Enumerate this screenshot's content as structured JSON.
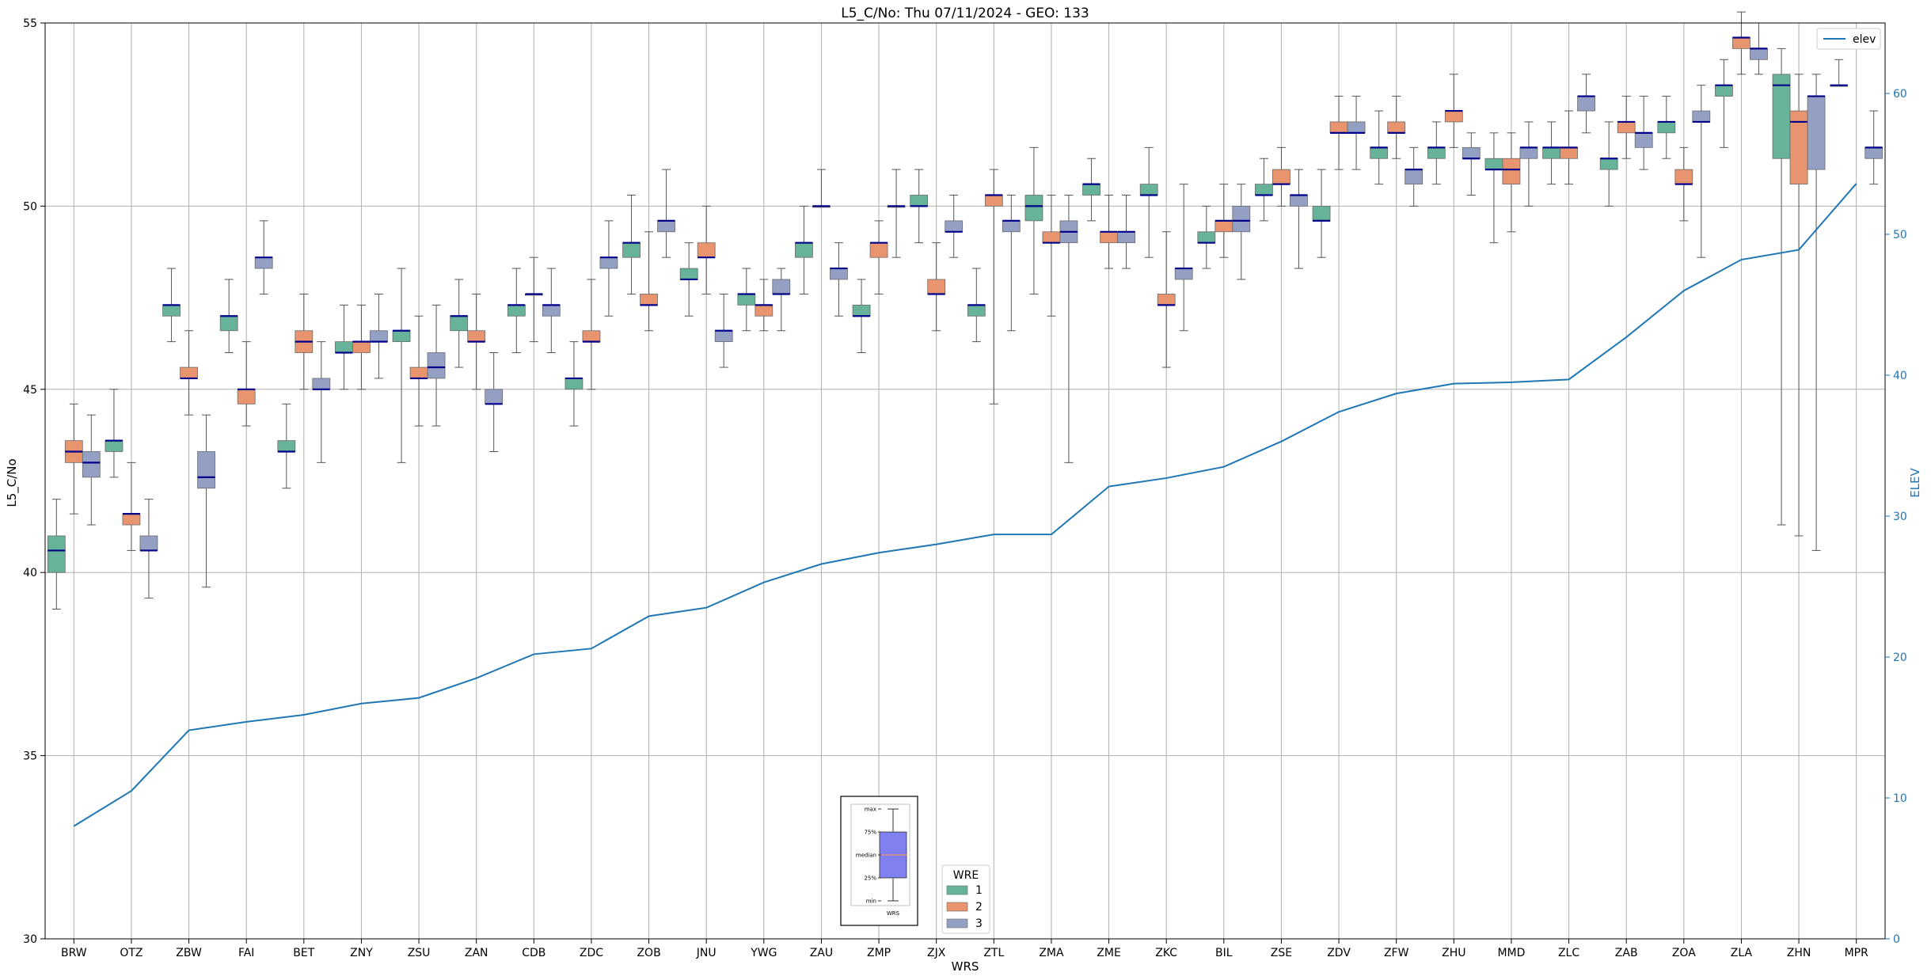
{
  "chart_data": {
    "type": "box",
    "title": "L5_C/No: Thu 07/11/2024 - GEO: 133",
    "xlabel": "WRS",
    "ylabel": "L5_C/No",
    "y2label": "ELEV",
    "ylim": [
      30,
      55
    ],
    "y2lim": [
      0,
      65
    ],
    "yticks": [
      "30",
      "35",
      "40",
      "45",
      "50",
      "55"
    ],
    "y2ticks": [
      "0",
      "10",
      "20",
      "30",
      "40",
      "50",
      "60"
    ],
    "grid": true,
    "categories": [
      "BRW",
      "OTZ",
      "ZBW",
      "FAI",
      "BET",
      "ZNY",
      "ZSU",
      "ZAN",
      "CDB",
      "ZDC",
      "ZOB",
      "JNU",
      "YWG",
      "ZAU",
      "ZMP",
      "ZJX",
      "ZTL",
      "ZMA",
      "ZME",
      "ZKC",
      "BIL",
      "ZSE",
      "ZDV",
      "ZFW",
      "ZHU",
      "MMD",
      "ZLC",
      "ZAB",
      "ZOA",
      "ZLA",
      "ZHN",
      "MPR"
    ],
    "wre_legend": {
      "title": "WRE",
      "entries": [
        {
          "label": "1",
          "color": "#66b39a"
        },
        {
          "label": "2",
          "color": "#e8946f"
        },
        {
          "label": "3",
          "color": "#949fc4"
        }
      ]
    },
    "line_legend": {
      "label": "elev",
      "color": "#1f77b4"
    },
    "median_color": "#00008b",
    "inset_key": {
      "labels": [
        "max",
        "75%",
        "median",
        "25%",
        "min"
      ],
      "footer": "WRS"
    },
    "elev": [
      8,
      10.5,
      14.8,
      15.4,
      15.9,
      16.7,
      17.1,
      18.5,
      20.2,
      20.6,
      22.9,
      23.5,
      25.3,
      26.6,
      27.4,
      28.0,
      28.7,
      28.7,
      32.1,
      32.7,
      33.5,
      35.3,
      37.4,
      38.7,
      39.4,
      39.5,
      39.7,
      42.7,
      46.0,
      48.2,
      48.9,
      53.6
    ],
    "boxes": [
      {
        "wrs": "BRW",
        "wre": 1,
        "min": 39.0,
        "q1": 40.0,
        "median": 40.6,
        "q3": 41.0,
        "max": 42.0
      },
      {
        "wrs": "BRW",
        "wre": 2,
        "min": 41.6,
        "q1": 43.0,
        "median": 43.3,
        "q3": 43.6,
        "max": 44.6
      },
      {
        "wrs": "BRW",
        "wre": 3,
        "min": 41.3,
        "q1": 42.6,
        "median": 43.0,
        "q3": 43.3,
        "max": 44.3
      },
      {
        "wrs": "OTZ",
        "wre": 1,
        "min": 42.6,
        "q1": 43.3,
        "median": 43.6,
        "q3": 43.6,
        "max": 45.0
      },
      {
        "wrs": "OTZ",
        "wre": 2,
        "min": 40.6,
        "q1": 41.3,
        "median": 41.6,
        "q3": 41.6,
        "max": 43.0
      },
      {
        "wrs": "OTZ",
        "wre": 3,
        "min": 39.3,
        "q1": 40.6,
        "median": 40.6,
        "q3": 41.0,
        "max": 42.0
      },
      {
        "wrs": "ZBW",
        "wre": 1,
        "min": 46.3,
        "q1": 47.0,
        "median": 47.3,
        "q3": 47.3,
        "max": 48.3
      },
      {
        "wrs": "ZBW",
        "wre": 2,
        "min": 44.3,
        "q1": 45.3,
        "median": 45.3,
        "q3": 45.6,
        "max": 46.6
      },
      {
        "wrs": "ZBW",
        "wre": 3,
        "min": 39.6,
        "q1": 42.3,
        "median": 42.6,
        "q3": 43.3,
        "max": 44.3
      },
      {
        "wrs": "FAI",
        "wre": 1,
        "min": 46.0,
        "q1": 46.6,
        "median": 47.0,
        "q3": 47.0,
        "max": 48.0
      },
      {
        "wrs": "FAI",
        "wre": 2,
        "min": 44.0,
        "q1": 44.6,
        "median": 45.0,
        "q3": 45.0,
        "max": 46.3
      },
      {
        "wrs": "FAI",
        "wre": 3,
        "min": 47.6,
        "q1": 48.3,
        "median": 48.6,
        "q3": 48.6,
        "max": 49.6
      },
      {
        "wrs": "BET",
        "wre": 1,
        "min": 42.3,
        "q1": 43.3,
        "median": 43.3,
        "q3": 43.6,
        "max": 44.6
      },
      {
        "wrs": "BET",
        "wre": 2,
        "min": 45.0,
        "q1": 46.0,
        "median": 46.3,
        "q3": 46.6,
        "max": 47.6
      },
      {
        "wrs": "BET",
        "wre": 3,
        "min": 43.0,
        "q1": 45.0,
        "median": 45.0,
        "q3": 45.3,
        "max": 46.3
      },
      {
        "wrs": "ZNY",
        "wre": 1,
        "min": 45.0,
        "q1": 46.0,
        "median": 46.0,
        "q3": 46.3,
        "max": 47.3
      },
      {
        "wrs": "ZNY",
        "wre": 2,
        "min": 45.0,
        "q1": 46.0,
        "median": 46.3,
        "q3": 46.3,
        "max": 47.3
      },
      {
        "wrs": "ZNY",
        "wre": 3,
        "min": 45.3,
        "q1": 46.3,
        "median": 46.3,
        "q3": 46.6,
        "max": 47.6
      },
      {
        "wrs": "ZSU",
        "wre": 1,
        "min": 43.0,
        "q1": 46.3,
        "median": 46.6,
        "q3": 46.6,
        "max": 48.3
      },
      {
        "wrs": "ZSU",
        "wre": 2,
        "min": 44.0,
        "q1": 45.3,
        "median": 45.3,
        "q3": 45.6,
        "max": 47.0
      },
      {
        "wrs": "ZSU",
        "wre": 3,
        "min": 44.0,
        "q1": 45.3,
        "median": 45.6,
        "q3": 46.0,
        "max": 47.3
      },
      {
        "wrs": "ZAN",
        "wre": 1,
        "min": 45.6,
        "q1": 46.6,
        "median": 47.0,
        "q3": 47.0,
        "max": 48.0
      },
      {
        "wrs": "ZAN",
        "wre": 2,
        "min": 45.0,
        "q1": 46.3,
        "median": 46.3,
        "q3": 46.6,
        "max": 47.6
      },
      {
        "wrs": "ZAN",
        "wre": 3,
        "min": 43.3,
        "q1": 44.6,
        "median": 44.6,
        "q3": 45.0,
        "max": 46.0
      },
      {
        "wrs": "CDB",
        "wre": 1,
        "min": 46.0,
        "q1": 47.0,
        "median": 47.3,
        "q3": 47.3,
        "max": 48.3
      },
      {
        "wrs": "CDB",
        "wre": 2,
        "min": 46.3,
        "q1": 47.6,
        "median": 47.6,
        "q3": 47.6,
        "max": 48.6
      },
      {
        "wrs": "CDB",
        "wre": 3,
        "min": 46.0,
        "q1": 47.0,
        "median": 47.3,
        "q3": 47.3,
        "max": 48.3
      },
      {
        "wrs": "ZDC",
        "wre": 1,
        "min": 44.0,
        "q1": 45.0,
        "median": 45.3,
        "q3": 45.3,
        "max": 46.3
      },
      {
        "wrs": "ZDC",
        "wre": 2,
        "min": 45.0,
        "q1": 46.3,
        "median": 46.3,
        "q3": 46.6,
        "max": 48.0
      },
      {
        "wrs": "ZDC",
        "wre": 3,
        "min": 47.0,
        "q1": 48.3,
        "median": 48.6,
        "q3": 48.6,
        "max": 49.6
      },
      {
        "wrs": "ZOB",
        "wre": 1,
        "min": 47.6,
        "q1": 48.6,
        "median": 49.0,
        "q3": 49.0,
        "max": 50.3
      },
      {
        "wrs": "ZOB",
        "wre": 2,
        "min": 46.6,
        "q1": 47.3,
        "median": 47.3,
        "q3": 47.6,
        "max": 49.3
      },
      {
        "wrs": "ZOB",
        "wre": 3,
        "min": 48.6,
        "q1": 49.3,
        "median": 49.6,
        "q3": 49.6,
        "max": 51.0
      },
      {
        "wrs": "JNU",
        "wre": 1,
        "min": 47.0,
        "q1": 48.0,
        "median": 48.0,
        "q3": 48.3,
        "max": 49.0
      },
      {
        "wrs": "JNU",
        "wre": 2,
        "min": 47.6,
        "q1": 48.6,
        "median": 48.6,
        "q3": 49.0,
        "max": 50.0
      },
      {
        "wrs": "JNU",
        "wre": 3,
        "min": 45.6,
        "q1": 46.3,
        "median": 46.6,
        "q3": 46.6,
        "max": 47.6
      },
      {
        "wrs": "YWG",
        "wre": 1,
        "min": 46.6,
        "q1": 47.3,
        "median": 47.6,
        "q3": 47.6,
        "max": 48.3
      },
      {
        "wrs": "YWG",
        "wre": 2,
        "min": 46.6,
        "q1": 47.0,
        "median": 47.3,
        "q3": 47.3,
        "max": 48.0
      },
      {
        "wrs": "YWG",
        "wre": 3,
        "min": 46.6,
        "q1": 47.6,
        "median": 47.6,
        "q3": 48.0,
        "max": 48.3
      },
      {
        "wrs": "ZAU",
        "wre": 1,
        "min": 47.6,
        "q1": 48.6,
        "median": 49.0,
        "q3": 49.0,
        "max": 50.0
      },
      {
        "wrs": "ZAU",
        "wre": 2,
        "min": 50.0,
        "q1": 50.0,
        "median": 50.0,
        "q3": 50.0,
        "max": 51.0
      },
      {
        "wrs": "ZAU",
        "wre": 3,
        "min": 47.0,
        "q1": 48.0,
        "median": 48.3,
        "q3": 48.3,
        "max": 49.0
      },
      {
        "wrs": "ZMP",
        "wre": 1,
        "min": 46.0,
        "q1": 47.0,
        "median": 47.0,
        "q3": 47.3,
        "max": 48.0
      },
      {
        "wrs": "ZMP",
        "wre": 2,
        "min": 47.6,
        "q1": 48.6,
        "median": 49.0,
        "q3": 49.0,
        "max": 49.6
      },
      {
        "wrs": "ZMP",
        "wre": 3,
        "min": 48.6,
        "q1": 50.0,
        "median": 50.0,
        "q3": 50.0,
        "max": 51.0
      },
      {
        "wrs": "ZJX",
        "wre": 1,
        "min": 49.0,
        "q1": 50.0,
        "median": 50.0,
        "q3": 50.3,
        "max": 51.0
      },
      {
        "wrs": "ZJX",
        "wre": 2,
        "min": 46.6,
        "q1": 47.6,
        "median": 47.6,
        "q3": 48.0,
        "max": 49.0
      },
      {
        "wrs": "ZJX",
        "wre": 3,
        "min": 48.6,
        "q1": 49.3,
        "median": 49.3,
        "q3": 49.6,
        "max": 50.3
      },
      {
        "wrs": "ZTL",
        "wre": 1,
        "min": 46.3,
        "q1": 47.0,
        "median": 47.3,
        "q3": 47.3,
        "max": 48.3
      },
      {
        "wrs": "ZTL",
        "wre": 2,
        "min": 44.6,
        "q1": 50.0,
        "median": 50.3,
        "q3": 50.3,
        "max": 51.0
      },
      {
        "wrs": "ZTL",
        "wre": 3,
        "min": 46.6,
        "q1": 49.3,
        "median": 49.6,
        "q3": 49.6,
        "max": 50.3
      },
      {
        "wrs": "ZMA",
        "wre": 1,
        "min": 47.6,
        "q1": 49.6,
        "median": 50.0,
        "q3": 50.3,
        "max": 51.6
      },
      {
        "wrs": "ZMA",
        "wre": 2,
        "min": 47.0,
        "q1": 49.0,
        "median": 49.0,
        "q3": 49.3,
        "max": 50.3
      },
      {
        "wrs": "ZMA",
        "wre": 3,
        "min": 43.0,
        "q1": 49.0,
        "median": 49.3,
        "q3": 49.6,
        "max": 50.3
      },
      {
        "wrs": "ZME",
        "wre": 1,
        "min": 49.6,
        "q1": 50.3,
        "median": 50.6,
        "q3": 50.6,
        "max": 51.3
      },
      {
        "wrs": "ZME",
        "wre": 2,
        "min": 48.3,
        "q1": 49.0,
        "median": 49.3,
        "q3": 49.3,
        "max": 50.3
      },
      {
        "wrs": "ZME",
        "wre": 3,
        "min": 48.3,
        "q1": 49.0,
        "median": 49.3,
        "q3": 49.3,
        "max": 50.3
      },
      {
        "wrs": "ZKC",
        "wre": 1,
        "min": 48.6,
        "q1": 50.3,
        "median": 50.3,
        "q3": 50.6,
        "max": 51.6
      },
      {
        "wrs": "ZKC",
        "wre": 2,
        "min": 45.6,
        "q1": 47.3,
        "median": 47.3,
        "q3": 47.6,
        "max": 49.3
      },
      {
        "wrs": "ZKC",
        "wre": 3,
        "min": 46.6,
        "q1": 48.0,
        "median": 48.3,
        "q3": 48.3,
        "max": 50.6
      },
      {
        "wrs": "BIL",
        "wre": 1,
        "min": 48.3,
        "q1": 49.0,
        "median": 49.0,
        "q3": 49.3,
        "max": 50.0
      },
      {
        "wrs": "BIL",
        "wre": 2,
        "min": 48.6,
        "q1": 49.3,
        "median": 49.6,
        "q3": 49.6,
        "max": 50.6
      },
      {
        "wrs": "BIL",
        "wre": 3,
        "min": 48.0,
        "q1": 49.3,
        "median": 49.6,
        "q3": 50.0,
        "max": 50.6
      },
      {
        "wrs": "ZSE",
        "wre": 1,
        "min": 49.6,
        "q1": 50.3,
        "median": 50.3,
        "q3": 50.6,
        "max": 51.3
      },
      {
        "wrs": "ZSE",
        "wre": 2,
        "min": 50.0,
        "q1": 50.6,
        "median": 50.6,
        "q3": 51.0,
        "max": 51.6
      },
      {
        "wrs": "ZSE",
        "wre": 3,
        "min": 48.3,
        "q1": 50.0,
        "median": 50.3,
        "q3": 50.3,
        "max": 51.0
      },
      {
        "wrs": "ZDV",
        "wre": 1,
        "min": 48.6,
        "q1": 49.6,
        "median": 49.6,
        "q3": 50.0,
        "max": 51.0
      },
      {
        "wrs": "ZDV",
        "wre": 2,
        "min": 51.0,
        "q1": 52.0,
        "median": 52.0,
        "q3": 52.3,
        "max": 53.0
      },
      {
        "wrs": "ZDV",
        "wre": 3,
        "min": 51.0,
        "q1": 52.0,
        "median": 52.0,
        "q3": 52.3,
        "max": 53.0
      },
      {
        "wrs": "ZFW",
        "wre": 1,
        "min": 50.6,
        "q1": 51.3,
        "median": 51.6,
        "q3": 51.6,
        "max": 52.6
      },
      {
        "wrs": "ZFW",
        "wre": 2,
        "min": 51.3,
        "q1": 52.0,
        "median": 52.0,
        "q3": 52.3,
        "max": 53.0
      },
      {
        "wrs": "ZFW",
        "wre": 3,
        "min": 50.0,
        "q1": 50.6,
        "median": 51.0,
        "q3": 51.0,
        "max": 51.6
      },
      {
        "wrs": "ZHU",
        "wre": 1,
        "min": 50.6,
        "q1": 51.3,
        "median": 51.6,
        "q3": 51.6,
        "max": 52.3
      },
      {
        "wrs": "ZHU",
        "wre": 2,
        "min": 51.6,
        "q1": 52.3,
        "median": 52.6,
        "q3": 52.6,
        "max": 53.6
      },
      {
        "wrs": "ZHU",
        "wre": 3,
        "min": 50.3,
        "q1": 51.3,
        "median": 51.3,
        "q3": 51.6,
        "max": 52.0
      },
      {
        "wrs": "MMD",
        "wre": 1,
        "min": 49.0,
        "q1": 51.0,
        "median": 51.0,
        "q3": 51.3,
        "max": 52.0
      },
      {
        "wrs": "MMD",
        "wre": 2,
        "min": 49.3,
        "q1": 50.6,
        "median": 51.0,
        "q3": 51.3,
        "max": 52.0
      },
      {
        "wrs": "MMD",
        "wre": 3,
        "min": 50.0,
        "q1": 51.3,
        "median": 51.6,
        "q3": 51.6,
        "max": 52.3
      },
      {
        "wrs": "ZLC",
        "wre": 1,
        "min": 50.6,
        "q1": 51.3,
        "median": 51.6,
        "q3": 51.6,
        "max": 52.3
      },
      {
        "wrs": "ZLC",
        "wre": 2,
        "min": 50.6,
        "q1": 51.3,
        "median": 51.6,
        "q3": 51.6,
        "max": 52.6
      },
      {
        "wrs": "ZLC",
        "wre": 3,
        "min": 52.0,
        "q1": 52.6,
        "median": 53.0,
        "q3": 53.0,
        "max": 53.6
      },
      {
        "wrs": "ZAB",
        "wre": 1,
        "min": 50.0,
        "q1": 51.0,
        "median": 51.3,
        "q3": 51.3,
        "max": 52.3
      },
      {
        "wrs": "ZAB",
        "wre": 2,
        "min": 51.3,
        "q1": 52.0,
        "median": 52.3,
        "q3": 52.3,
        "max": 53.0
      },
      {
        "wrs": "ZAB",
        "wre": 3,
        "min": 51.0,
        "q1": 51.6,
        "median": 52.0,
        "q3": 52.0,
        "max": 53.0
      },
      {
        "wrs": "ZOA",
        "wre": 1,
        "min": 51.3,
        "q1": 52.0,
        "median": 52.3,
        "q3": 52.3,
        "max": 53.0
      },
      {
        "wrs": "ZOA",
        "wre": 2,
        "min": 49.6,
        "q1": 50.6,
        "median": 50.6,
        "q3": 51.0,
        "max": 51.6
      },
      {
        "wrs": "ZOA",
        "wre": 3,
        "min": 48.6,
        "q1": 52.3,
        "median": 52.3,
        "q3": 52.6,
        "max": 53.3
      },
      {
        "wrs": "ZLA",
        "wre": 1,
        "min": 51.6,
        "q1": 53.0,
        "median": 53.3,
        "q3": 53.3,
        "max": 54.0
      },
      {
        "wrs": "ZLA",
        "wre": 2,
        "min": 53.6,
        "q1": 54.3,
        "median": 54.6,
        "q3": 54.6,
        "max": 55.3
      },
      {
        "wrs": "ZLA",
        "wre": 3,
        "min": 53.6,
        "q1": 54.0,
        "median": 54.3,
        "q3": 54.3,
        "max": 55.0
      },
      {
        "wrs": "ZHN",
        "wre": 1,
        "min": 41.3,
        "q1": 51.3,
        "median": 53.3,
        "q3": 53.6,
        "max": 54.3
      },
      {
        "wrs": "ZHN",
        "wre": 2,
        "min": 41.0,
        "q1": 50.6,
        "median": 52.3,
        "q3": 52.6,
        "max": 53.6
      },
      {
        "wrs": "ZHN",
        "wre": 3,
        "min": 40.6,
        "q1": 51.0,
        "median": 53.0,
        "q3": 53.0,
        "max": 53.6
      },
      {
        "wrs": "MPR",
        "wre": 1,
        "min": 53.3,
        "q1": 53.3,
        "median": 53.3,
        "q3": 53.3,
        "max": 54.0
      },
      {
        "wrs": "MPR",
        "wre": 3,
        "min": 50.6,
        "q1": 51.3,
        "median": 51.6,
        "q3": 51.6,
        "max": 52.6
      }
    ]
  }
}
